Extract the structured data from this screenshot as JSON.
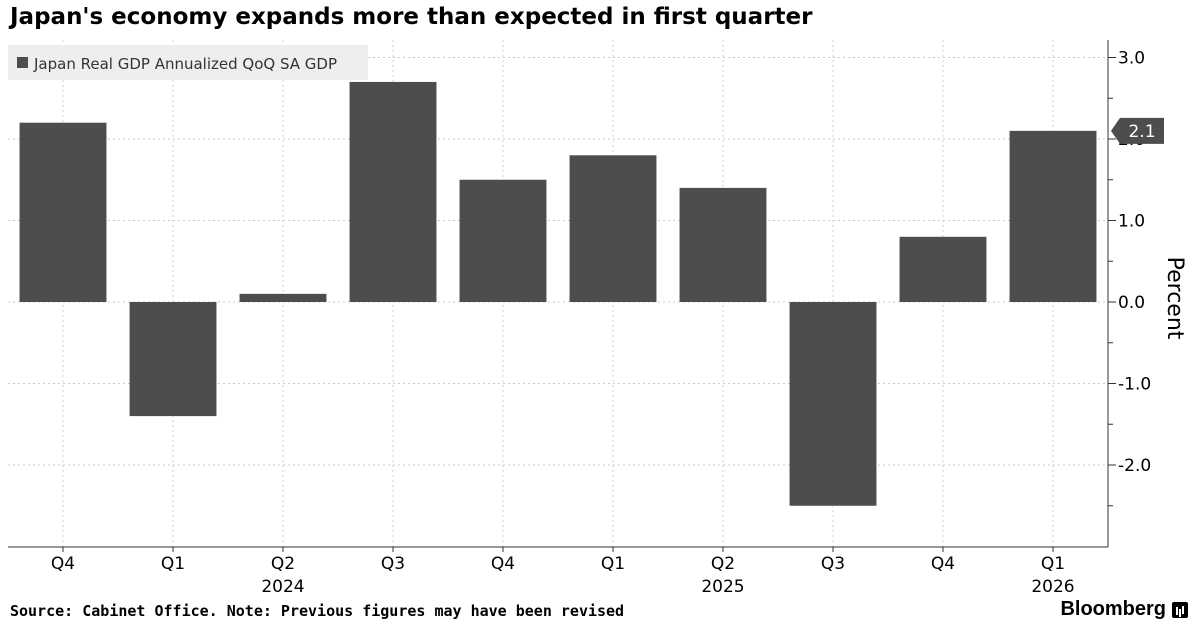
{
  "chart_data": {
    "type": "bar",
    "title": "Japan's economy expands more than expected in first quarter",
    "categories": [
      "Q4",
      "Q1",
      "Q2",
      "Q3",
      "Q4",
      "Q1",
      "Q2",
      "Q3",
      "Q4",
      "Q1"
    ],
    "year_labels": [
      {
        "index": 2,
        "label": "2024"
      },
      {
        "index": 6,
        "label": "2025"
      },
      {
        "index": 9,
        "label": "2026"
      }
    ],
    "series": [
      {
        "name": "Japan Real GDP Annualized QoQ SA GDP",
        "values": [
          2.2,
          -1.4,
          0.1,
          2.7,
          1.5,
          1.8,
          1.4,
          -2.5,
          0.8,
          2.1
        ]
      }
    ],
    "ylabel": "Percent",
    "ylim": [
      -3.0,
      3.0
    ],
    "yticks": [
      -2.0,
      -1.0,
      0.0,
      1.0,
      2.0,
      3.0
    ],
    "ytick_labels": [
      "-2.0",
      "-1.0",
      "0.0",
      "1.0",
      "2.0",
      "3.0"
    ],
    "last_value_label": "2.1",
    "grid": true,
    "legend_position": "top-left",
    "bar_color": "#4d4d4d",
    "source": "Source: Cabinet Office. Note: Previous figures may have been revised",
    "brand": "Bloomberg"
  }
}
